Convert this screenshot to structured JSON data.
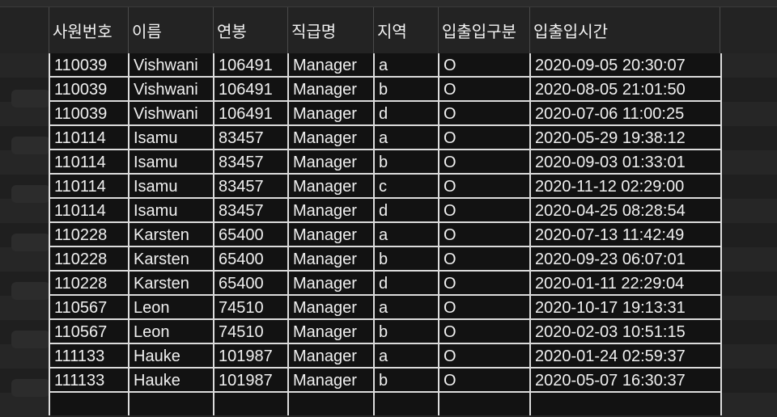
{
  "columns": [
    "사원번호",
    "이름",
    "연봉",
    "직급명",
    "지역",
    "입출입구분",
    "입출입시간"
  ],
  "rows": [
    [
      "110039",
      "Vishwani",
      "106491",
      "Manager",
      "a",
      "O",
      "2020-09-05 20:30:07"
    ],
    [
      "110039",
      "Vishwani",
      "106491",
      "Manager",
      "b",
      "O",
      "2020-08-05 21:01:50"
    ],
    [
      "110039",
      "Vishwani",
      "106491",
      "Manager",
      "d",
      "O",
      "2020-07-06 11:00:25"
    ],
    [
      "110114",
      "Isamu",
      "83457",
      "Manager",
      "a",
      "O",
      "2020-05-29 19:38:12"
    ],
    [
      "110114",
      "Isamu",
      "83457",
      "Manager",
      "b",
      "O",
      "2020-09-03 01:33:01"
    ],
    [
      "110114",
      "Isamu",
      "83457",
      "Manager",
      "c",
      "O",
      "2020-11-12 02:29:00"
    ],
    [
      "110114",
      "Isamu",
      "83457",
      "Manager",
      "d",
      "O",
      "2020-04-25 08:28:54"
    ],
    [
      "110228",
      "Karsten",
      "65400",
      "Manager",
      "a",
      "O",
      "2020-07-13 11:42:49"
    ],
    [
      "110228",
      "Karsten",
      "65400",
      "Manager",
      "b",
      "O",
      "2020-09-23 06:07:01"
    ],
    [
      "110228",
      "Karsten",
      "65400",
      "Manager",
      "d",
      "O",
      "2020-01-11 22:29:04"
    ],
    [
      "110567",
      "Leon",
      "74510",
      "Manager",
      "a",
      "O",
      "2020-10-17 19:13:31"
    ],
    [
      "110567",
      "Leon",
      "74510",
      "Manager",
      "b",
      "O",
      "2020-02-03 10:51:15"
    ],
    [
      "111133",
      "Hauke",
      "101987",
      "Manager",
      "a",
      "O",
      "2020-01-24 02:59:37"
    ],
    [
      "111133",
      "Hauke",
      "101987",
      "Manager",
      "b",
      "O",
      "2020-05-07 16:30:37"
    ]
  ],
  "colors": {
    "background": "#1e1e1e",
    "grid_background": "#121212",
    "grid_lines": "#dcdcdc",
    "text": "#f0f0f0"
  }
}
